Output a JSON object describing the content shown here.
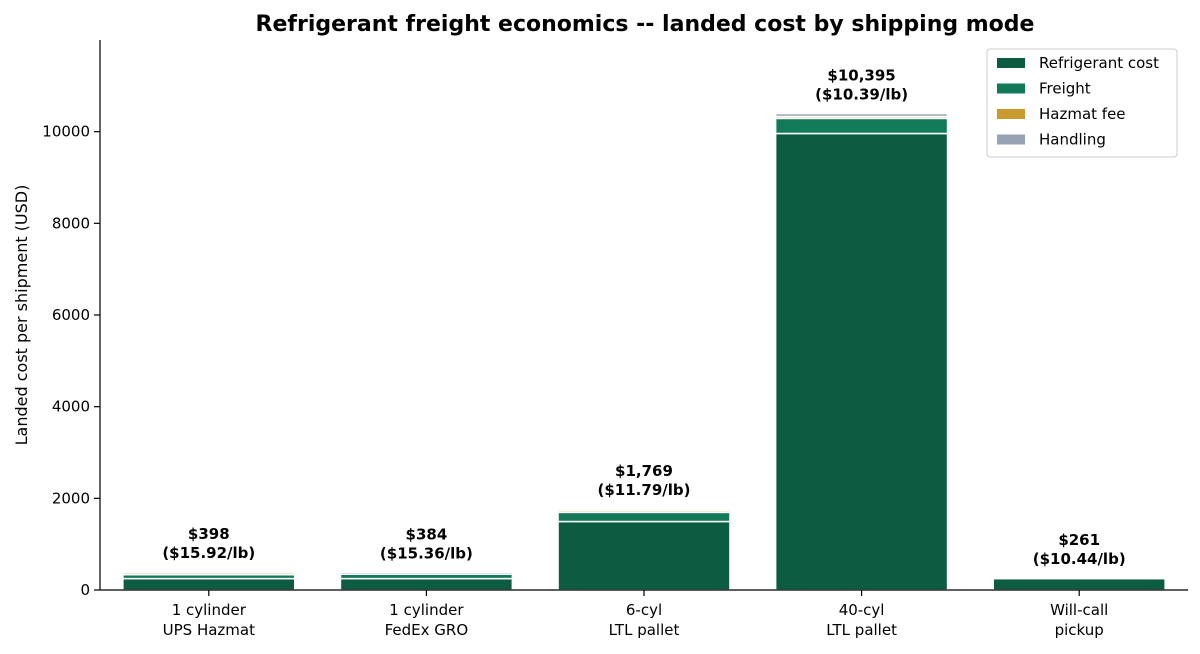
{
  "chart_data": {
    "type": "bar",
    "stacked": true,
    "title": "Refrigerant freight economics -- landed cost by shipping mode",
    "xlabel": "",
    "ylabel": "Landed cost per shipment (USD)",
    "ylim": [
      0,
      12000
    ],
    "yticks": [
      0,
      2000,
      4000,
      6000,
      8000,
      10000
    ],
    "categories": [
      [
        "1 cylinder",
        "UPS Hazmat"
      ],
      [
        "1 cylinder",
        "FedEx GRO"
      ],
      [
        "6-cyl",
        "LTL pallet"
      ],
      [
        "40-cyl",
        "LTL pallet"
      ],
      [
        "Will-call",
        "pickup"
      ]
    ],
    "series": [
      {
        "name": "Refrigerant cost",
        "color": "#0b5c40",
        "values": [
          249,
          249,
          1494,
          9960,
          249
        ]
      },
      {
        "name": "Freight",
        "color": "#127a59",
        "values": [
          85,
          95,
          200,
          330,
          0
        ]
      },
      {
        "name": "Hazmat fee",
        "color": "#c99a2e",
        "values": [
          40,
          0,
          40,
          40,
          0
        ]
      },
      {
        "name": "Handling",
        "color": "#97a3b5",
        "values": [
          24,
          40,
          35,
          65,
          12
        ]
      }
    ],
    "totals": [
      "$398",
      "$384",
      "$1,769",
      "$10,395",
      "$261"
    ],
    "per_lb": [
      "($15.92/lb)",
      "($15.36/lb)",
      "($11.79/lb)",
      "($10.39/lb)",
      "($10.44/lb)"
    ],
    "legend_position": "top-right",
    "grid": false
  }
}
